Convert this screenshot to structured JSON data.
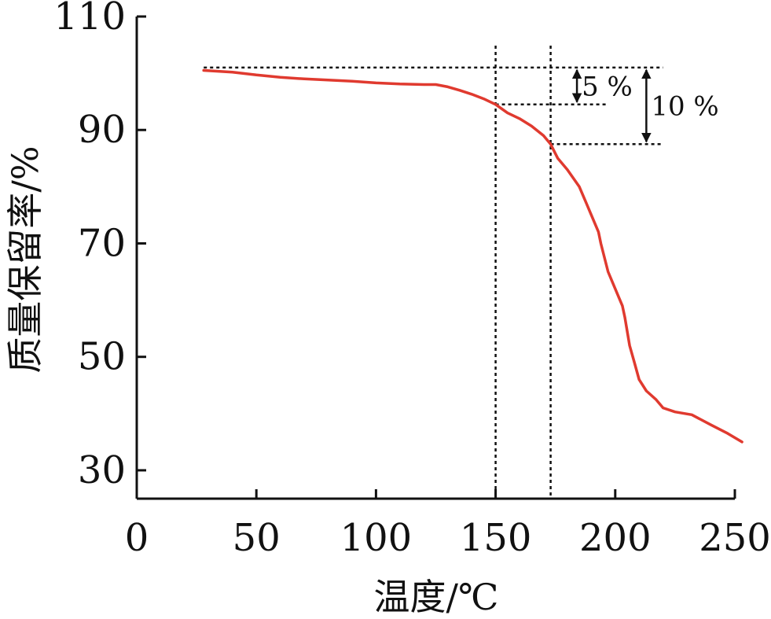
{
  "chart_data": {
    "type": "line",
    "xlabel": "温度/℃",
    "ylabel": "质量保留率/%",
    "xlim": [
      0,
      250
    ],
    "ylim": [
      25,
      110
    ],
    "x_ticks": [
      0,
      50,
      100,
      150,
      200,
      250
    ],
    "y_ticks": [
      30,
      50,
      70,
      90,
      110
    ],
    "x_tick_labels": [
      "0",
      "50",
      "100",
      "150",
      "200",
      "250"
    ],
    "y_tick_labels": [
      "30",
      "50",
      "70",
      "90",
      "110"
    ],
    "grid": false,
    "legend": false,
    "series": [
      {
        "color": "#e03a2f",
        "x": [
          28,
          40,
          50,
          60,
          70,
          80,
          90,
          100,
          110,
          120,
          125,
          130,
          135,
          140,
          145,
          150,
          155,
          160,
          165,
          170,
          173,
          176,
          180,
          185,
          188,
          190,
          193,
          194,
          197,
          200,
          203,
          204,
          206,
          208,
          210,
          213,
          217,
          220,
          225,
          232,
          240,
          247,
          253
        ],
        "y": [
          100.5,
          100.2,
          99.7,
          99.3,
          99.0,
          98.8,
          98.6,
          98.3,
          98.1,
          98.0,
          98.0,
          97.6,
          97.0,
          96.3,
          95.5,
          94.5,
          93.0,
          92.0,
          90.7,
          89.0,
          87.5,
          85.0,
          83.0,
          80.0,
          77.0,
          75.0,
          72.0,
          70.0,
          65.0,
          62.0,
          59.0,
          57.0,
          52.0,
          49.0,
          46.0,
          44.0,
          42.5,
          41.0,
          40.3,
          39.8,
          38.0,
          36.5,
          35.0
        ]
      }
    ],
    "reference_lines": {
      "vertical": [
        150,
        173
      ],
      "horizontal": [
        {
          "y": 101,
          "x_from": 28,
          "x_to": 220
        },
        {
          "y": 94.5,
          "x_from": 150,
          "x_to": 197
        },
        {
          "y": 87.5,
          "x_from": 173,
          "x_to": 220
        }
      ]
    },
    "annotations": [
      {
        "text": "5 %",
        "y_from": 101,
        "y_to": 94.5,
        "arrow_x": 184
      },
      {
        "text": "10 %",
        "y_from": 101,
        "y_to": 87.5,
        "arrow_x": 213
      }
    ]
  }
}
